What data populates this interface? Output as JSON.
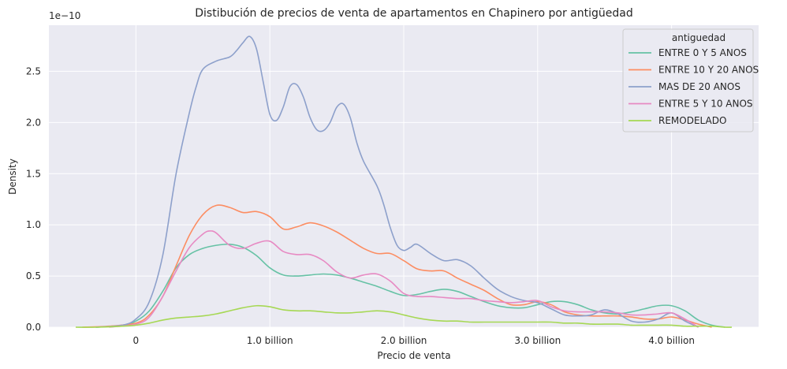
{
  "chart_data": {
    "type": "line",
    "title": "Distibución de precios de venta de apartamentos en Chapinero por antigüedad",
    "xlabel": "Precio de venta",
    "ylabel": "Density",
    "y_offset_label": "1e−10",
    "xlim": [
      -650000000,
      4650000000
    ],
    "ylim": [
      0,
      2.95
    ],
    "x_ticks": [
      {
        "value": 0,
        "label": "0"
      },
      {
        "value": 1000000000,
        "label": "1.0 billion"
      },
      {
        "value": 2000000000,
        "label": "2.0 billion"
      },
      {
        "value": 3000000000,
        "label": "3.0 billion"
      },
      {
        "value": 4000000000,
        "label": "4.0 billion"
      }
    ],
    "y_ticks": [
      {
        "value": 0,
        "label": "0.0"
      },
      {
        "value": 0.5,
        "label": "0.5"
      },
      {
        "value": 1.0,
        "label": "1.0"
      },
      {
        "value": 1.5,
        "label": "1.5"
      },
      {
        "value": 2.0,
        "label": "2.0"
      },
      {
        "value": 2.5,
        "label": "2.5"
      }
    ],
    "grid": true,
    "legend": {
      "title": "antiguedad",
      "position": "top-right"
    },
    "series": [
      {
        "name": "ENTRE 0 Y 5 ANOS",
        "color": "#66c2a5",
        "x": [
          -300000000,
          -100000000,
          0,
          100000000,
          200000000,
          300000000,
          400000000,
          500000000,
          600000000,
          700000000,
          800000000,
          900000000,
          1000000000,
          1100000000,
          1200000000,
          1300000000,
          1400000000,
          1500000000,
          1600000000,
          1700000000,
          1800000000,
          1900000000,
          2000000000,
          2100000000,
          2200000000,
          2300000000,
          2400000000,
          2500000000,
          2600000000,
          2700000000,
          2800000000,
          2900000000,
          3000000000,
          3100000000,
          3200000000,
          3300000000,
          3400000000,
          3500000000,
          3600000000,
          3700000000,
          3800000000,
          3900000000,
          4000000000,
          4100000000,
          4200000000,
          4300000000,
          4400000000
        ],
        "y": [
          0.0,
          0.02,
          0.06,
          0.16,
          0.35,
          0.58,
          0.71,
          0.77,
          0.8,
          0.81,
          0.78,
          0.7,
          0.58,
          0.51,
          0.5,
          0.51,
          0.52,
          0.51,
          0.48,
          0.44,
          0.4,
          0.35,
          0.31,
          0.32,
          0.35,
          0.37,
          0.35,
          0.3,
          0.25,
          0.21,
          0.19,
          0.19,
          0.22,
          0.25,
          0.25,
          0.22,
          0.17,
          0.14,
          0.13,
          0.15,
          0.18,
          0.21,
          0.21,
          0.16,
          0.07,
          0.02,
          0.0
        ]
      },
      {
        "name": "ENTRE 10 Y 20 ANOS",
        "color": "#fc8d62",
        "x": [
          -400000000,
          -200000000,
          0,
          100000000,
          200000000,
          300000000,
          400000000,
          500000000,
          600000000,
          700000000,
          800000000,
          900000000,
          1000000000,
          1100000000,
          1200000000,
          1300000000,
          1400000000,
          1500000000,
          1600000000,
          1700000000,
          1800000000,
          1900000000,
          2000000000,
          2100000000,
          2200000000,
          2300000000,
          2400000000,
          2500000000,
          2600000000,
          2700000000,
          2800000000,
          2900000000,
          3000000000,
          3100000000,
          3200000000,
          3300000000,
          3400000000,
          3500000000,
          3600000000,
          3700000000,
          3800000000,
          3900000000,
          4000000000,
          4100000000,
          4200000000,
          4300000000
        ],
        "y": [
          0.0,
          0.01,
          0.04,
          0.12,
          0.3,
          0.6,
          0.9,
          1.1,
          1.19,
          1.17,
          1.12,
          1.13,
          1.08,
          0.96,
          0.98,
          1.02,
          0.99,
          0.93,
          0.85,
          0.77,
          0.72,
          0.72,
          0.65,
          0.57,
          0.55,
          0.55,
          0.48,
          0.42,
          0.36,
          0.28,
          0.22,
          0.22,
          0.25,
          0.22,
          0.15,
          0.12,
          0.11,
          0.11,
          0.11,
          0.1,
          0.08,
          0.08,
          0.1,
          0.07,
          0.03,
          0.0
        ]
      },
      {
        "name": "MAS DE 20 ANOS",
        "color": "#8da0cb",
        "x": [
          -300000000,
          -100000000,
          0,
          100000000,
          200000000,
          300000000,
          400000000,
          450000000,
          500000000,
          600000000,
          700000000,
          750000000,
          800000000,
          850000000,
          900000000,
          950000000,
          1000000000,
          1050000000,
          1100000000,
          1150000000,
          1200000000,
          1250000000,
          1300000000,
          1350000000,
          1400000000,
          1450000000,
          1500000000,
          1550000000,
          1600000000,
          1650000000,
          1700000000,
          1800000000,
          1850000000,
          1900000000,
          1950000000,
          2000000000,
          2050000000,
          2100000000,
          2200000000,
          2300000000,
          2400000000,
          2500000000,
          2600000000,
          2700000000,
          2800000000,
          2900000000,
          3000000000,
          3100000000,
          3200000000,
          3300000000,
          3400000000,
          3500000000,
          3600000000,
          3700000000,
          3800000000,
          3900000000,
          4000000000,
          4100000000,
          4200000000
        ],
        "y": [
          0.0,
          0.02,
          0.08,
          0.25,
          0.7,
          1.5,
          2.1,
          2.35,
          2.52,
          2.6,
          2.64,
          2.7,
          2.78,
          2.84,
          2.72,
          2.4,
          2.08,
          2.02,
          2.15,
          2.35,
          2.37,
          2.25,
          2.05,
          1.93,
          1.92,
          2.0,
          2.15,
          2.18,
          2.05,
          1.8,
          1.62,
          1.38,
          1.2,
          0.97,
          0.8,
          0.75,
          0.78,
          0.81,
          0.72,
          0.65,
          0.66,
          0.6,
          0.48,
          0.37,
          0.3,
          0.26,
          0.24,
          0.18,
          0.12,
          0.11,
          0.12,
          0.17,
          0.13,
          0.06,
          0.05,
          0.08,
          0.14,
          0.06,
          0.0
        ]
      },
      {
        "name": "ENTRE 5 Y 10 ANOS",
        "color": "#e78ac3",
        "x": [
          -200000000,
          0,
          100000000,
          200000000,
          300000000,
          400000000,
          500000000,
          550000000,
          600000000,
          700000000,
          800000000,
          900000000,
          1000000000,
          1100000000,
          1200000000,
          1300000000,
          1400000000,
          1500000000,
          1600000000,
          1700000000,
          1800000000,
          1900000000,
          2000000000,
          2100000000,
          2200000000,
          2300000000,
          2400000000,
          2500000000,
          2600000000,
          2700000000,
          2800000000,
          2900000000,
          3000000000,
          3100000000,
          3200000000,
          3300000000,
          3400000000,
          3500000000,
          3600000000,
          3700000000,
          3800000000,
          3900000000,
          4000000000,
          4100000000,
          4200000000
        ],
        "y": [
          0.0,
          0.03,
          0.1,
          0.3,
          0.55,
          0.78,
          0.91,
          0.94,
          0.92,
          0.8,
          0.77,
          0.82,
          0.84,
          0.74,
          0.71,
          0.71,
          0.65,
          0.54,
          0.48,
          0.51,
          0.52,
          0.45,
          0.33,
          0.3,
          0.3,
          0.29,
          0.28,
          0.28,
          0.26,
          0.25,
          0.24,
          0.25,
          0.26,
          0.2,
          0.16,
          0.15,
          0.15,
          0.15,
          0.14,
          0.12,
          0.12,
          0.13,
          0.14,
          0.08,
          0.0
        ]
      },
      {
        "name": "REMODELADO",
        "color": "#a6d854",
        "x": [
          -450000000,
          -300000000,
          -100000000,
          0,
          100000000,
          200000000,
          300000000,
          400000000,
          500000000,
          600000000,
          700000000,
          800000000,
          900000000,
          1000000000,
          1100000000,
          1200000000,
          1300000000,
          1400000000,
          1500000000,
          1600000000,
          1700000000,
          1800000000,
          1900000000,
          2000000000,
          2100000000,
          2200000000,
          2300000000,
          2400000000,
          2500000000,
          2600000000,
          2700000000,
          2800000000,
          2900000000,
          3000000000,
          3100000000,
          3200000000,
          3300000000,
          3400000000,
          3500000000,
          3600000000,
          3700000000,
          3800000000,
          3900000000,
          4000000000,
          4100000000,
          4200000000,
          4300000000,
          4400000000,
          4450000000
        ],
        "y": [
          0.0,
          0.0,
          0.01,
          0.02,
          0.04,
          0.07,
          0.09,
          0.1,
          0.11,
          0.13,
          0.16,
          0.19,
          0.21,
          0.2,
          0.17,
          0.16,
          0.16,
          0.15,
          0.14,
          0.14,
          0.15,
          0.16,
          0.15,
          0.12,
          0.09,
          0.07,
          0.06,
          0.06,
          0.05,
          0.05,
          0.05,
          0.05,
          0.05,
          0.05,
          0.05,
          0.04,
          0.04,
          0.03,
          0.03,
          0.03,
          0.02,
          0.02,
          0.02,
          0.02,
          0.01,
          0.01,
          0.01,
          0.0,
          0.0
        ]
      }
    ]
  }
}
